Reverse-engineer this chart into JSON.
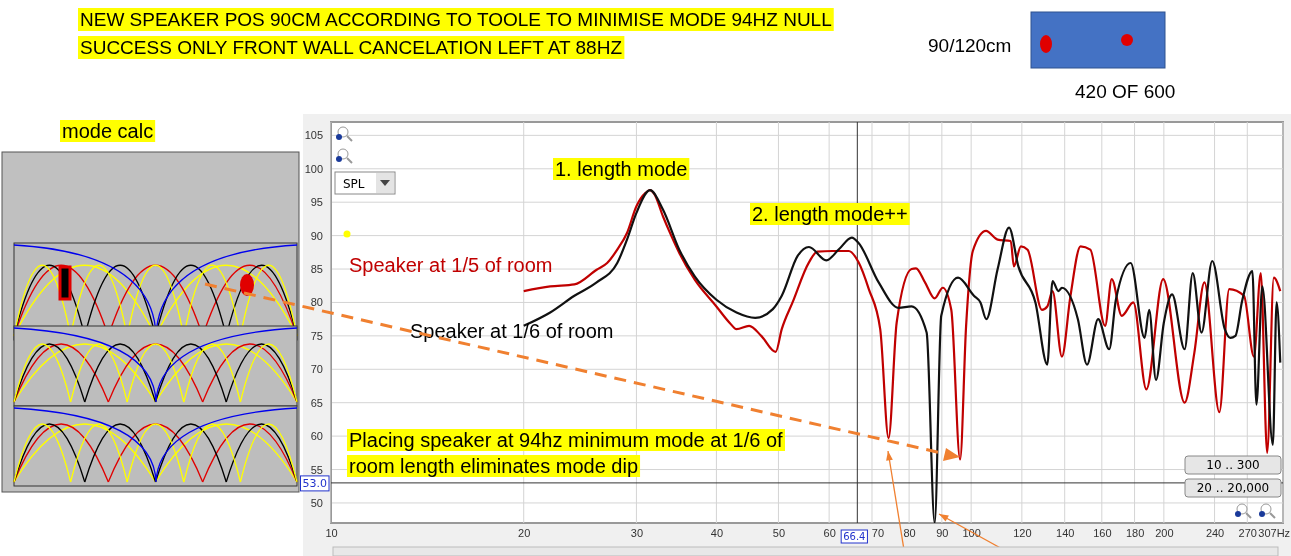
{
  "chart_data": {
    "type": "line",
    "title": "NEW SPEAKER POS 90CM ACCORDING TO TOOLE TO MINIMISE MODE  94HZ NULL\nSUCCESS ONLY  FRONT WALL CANCELATION LEFT AT 88HZ",
    "log": "x",
    "xlim": [
      10,
      307
    ],
    "ylim": [
      47,
      107
    ],
    "xticks": [
      10,
      20,
      30,
      40,
      50,
      60,
      70,
      80,
      90,
      100,
      120,
      140,
      160,
      180,
      200,
      240,
      270,
      {
        "value": 307,
        "label": "307Hz"
      }
    ],
    "yticks": [
      50,
      55,
      60,
      65,
      70,
      75,
      80,
      85,
      90,
      95,
      100,
      105
    ],
    "grid": true,
    "legend": false,
    "marker": "none",
    "line_style": "solid",
    "series": [
      {
        "name": "Speaker at 1/5 of room",
        "color": "#c00000",
        "x": [
          20,
          22,
          24,
          26,
          27,
          28,
          29,
          30,
          31,
          31.5,
          32,
          33,
          34,
          35,
          37,
          40,
          42,
          43,
          45,
          47,
          49.5,
          50.6,
          52.6,
          55.8,
          57.5,
          60.7,
          64.4,
          66.7,
          69.2,
          72.1,
          74.3,
          76.5,
          80.7,
          82,
          84.7,
          87.7,
          90.3,
          93.1,
          96.1,
          98.2,
          100.6,
          105.5,
          110,
          115.3,
          116.6,
          119.6,
          122.5,
          129,
          131.5,
          134,
          138.6,
          142.9,
          148.2,
          153.5,
          161.9,
          165.8,
          171.9,
          179.2,
          187.8,
          199.5,
          215.5,
          223.2,
          231.4,
          244.2,
          253,
          266.8,
          276.5,
          283.4,
          290,
          297,
          304
        ],
        "values": [
          81.7,
          82.4,
          82.7,
          84.9,
          85.9,
          87.9,
          90.4,
          94.4,
          96.4,
          96.8,
          96.2,
          92.9,
          90,
          87.4,
          83.4,
          79.4,
          76.9,
          76,
          76.5,
          75,
          72.6,
          76,
          80,
          86,
          87.6,
          87.7,
          87.7,
          86,
          82,
          76,
          59.7,
          77,
          85,
          85.1,
          83,
          80.6,
          82.2,
          78.9,
          56.5,
          76.5,
          87.7,
          90.7,
          89.4,
          89.2,
          85.4,
          88.4,
          87.9,
          78.9,
          79.4,
          81.7,
          71.9,
          80.9,
          88.4,
          87.9,
          76.5,
          83.5,
          78,
          80,
          67,
          83.5,
          65,
          72.5,
          83,
          63.6,
          82,
          81,
          71.9,
          84.4,
          57.5,
          83.7,
          81.7
        ]
      },
      {
        "name": "Speaker at 1/6 of room",
        "color": "#111111",
        "x": [
          20,
          22,
          24,
          26,
          28,
          29,
          30,
          31.5,
          33,
          35,
          37,
          40,
          43,
          46,
          49,
          50.6,
          53.6,
          55.8,
          59.4,
          62.2,
          65.1,
          66.7,
          71.7,
          77,
          80.7,
          85.2,
          87.7,
          89.8,
          95.4,
          101,
          103.4,
          105.6,
          110,
          114.6,
          118.5,
          126,
          131.5,
          134,
          136.9,
          138.6,
          146.8,
          151.7,
          157.9,
          164.3,
          168.3,
          177.5,
          186.6,
          189.7,
          194.4,
          200,
          206,
          215.5,
          221.9,
          229,
          238,
          249,
          254,
          258.7,
          265,
          275,
          279,
          285,
          296,
          300,
          304
        ],
        "values": [
          76.5,
          78.5,
          81,
          83,
          85.9,
          89.4,
          93.4,
          96.8,
          93.9,
          87.9,
          83.9,
          80.4,
          78.5,
          77.7,
          79,
          81,
          87,
          88.3,
          86.3,
          88,
          89.7,
          88.9,
          83,
          79.2,
          79.4,
          75.5,
          47,
          78,
          83.7,
          81,
          80,
          77.5,
          85,
          91.2,
          85.4,
          80,
          70.7,
          83.2,
          81.7,
          82.2,
          77.5,
          70.7,
          77.5,
          73,
          80.4,
          85.9,
          74.7,
          78.9,
          68.4,
          77,
          81.2,
          73,
          84.4,
          75.5,
          86.2,
          76,
          74.7,
          75,
          80.2,
          84.7,
          64.7,
          82.4,
          58.7,
          80,
          71
        ]
      }
    ],
    "ref_lines": [
      {
        "axis": "x",
        "value": 66.4,
        "label": "66.4",
        "color": "#333333"
      },
      {
        "axis": "y",
        "value": 53,
        "label": "53.0",
        "color": "#333333"
      }
    ],
    "annotations": [
      "1. length mode",
      "2. length mode++",
      "Placing speaker at 94hz minimum mode at 1/6 of room length eliminates mode dip",
      "mode calc",
      "90/120cm",
      "420 OF 600",
      "SPL",
      "10 .. 300",
      "20 .. 20,000"
    ]
  }
}
